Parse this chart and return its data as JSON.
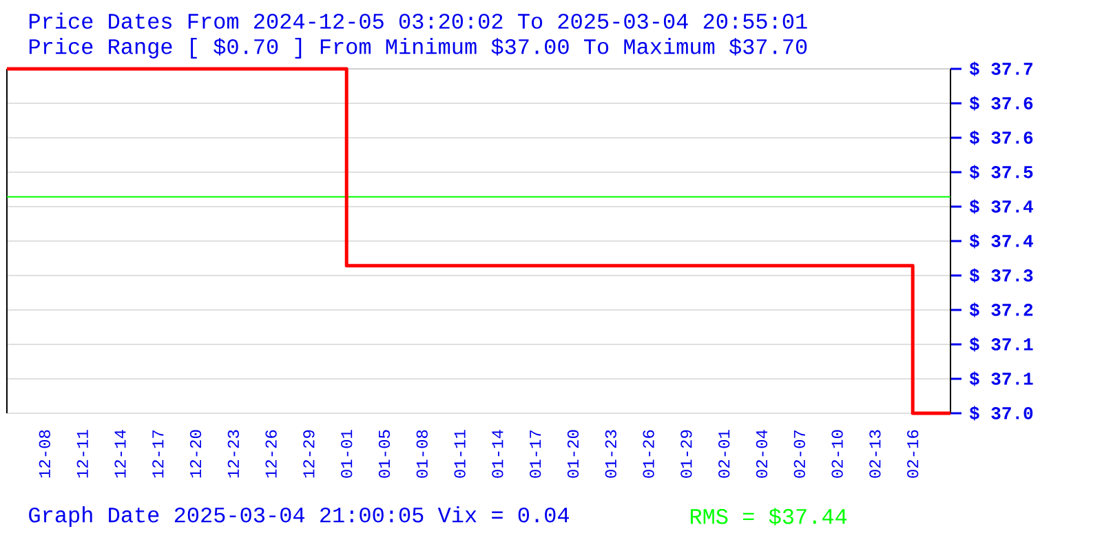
{
  "chart_data": {
    "type": "step",
    "title": "Price Dates From 2024-12-05 03:20:02 To 2025-03-04 20:55:01",
    "subtitle": "Price Range [ $0.70 ] From Minimum $37.00 To Maximum $37.70",
    "categories": [
      null,
      "12-08",
      "12-11",
      "12-14",
      "12-17",
      "12-20",
      "12-23",
      "12-26",
      "12-29",
      "01-01",
      "01-05",
      "01-08",
      "01-11",
      "01-14",
      "01-17",
      "01-20",
      "01-23",
      "01-26",
      "01-29",
      "02-01",
      "02-04",
      "02-07",
      "02-10",
      "02-13",
      "02-16",
      null
    ],
    "series": [
      {
        "color": "#ff0000",
        "values": [
          37.7,
          37.7,
          37.7,
          37.7,
          37.7,
          37.7,
          37.7,
          37.7,
          37.7,
          37.3,
          37.3,
          37.3,
          37.3,
          37.3,
          37.3,
          37.3,
          37.3,
          37.3,
          37.3,
          37.3,
          37.3,
          37.3,
          37.3,
          37.3,
          37.0,
          37.0
        ]
      }
    ],
    "ylim": [
      37.0,
      37.7
    ],
    "yticks": [
      {
        "value": 37.0,
        "label": "$ 37.0"
      },
      {
        "value": 37.07,
        "label": "$ 37.1"
      },
      {
        "value": 37.14,
        "label": "$ 37.1"
      },
      {
        "value": 37.21,
        "label": "$ 37.2"
      },
      {
        "value": 37.28,
        "label": "$ 37.3"
      },
      {
        "value": 37.35,
        "label": "$ 37.4"
      },
      {
        "value": 37.42,
        "label": "$ 37.4"
      },
      {
        "value": 37.49,
        "label": "$ 37.5"
      },
      {
        "value": 37.56,
        "label": "$ 37.6"
      },
      {
        "value": 37.63,
        "label": "$ 37.6"
      },
      {
        "value": 37.7,
        "label": "$ 37.7"
      }
    ],
    "grid": "y",
    "marker": "none",
    "ref_lines": [
      {
        "axis": "y",
        "value": 37.44,
        "label": "RMS = $37.44",
        "color": "#00ff00"
      }
    ],
    "annotations": [
      "Graph Date 2025-03-04 21:00:05 Vix = 0.04"
    ]
  }
}
